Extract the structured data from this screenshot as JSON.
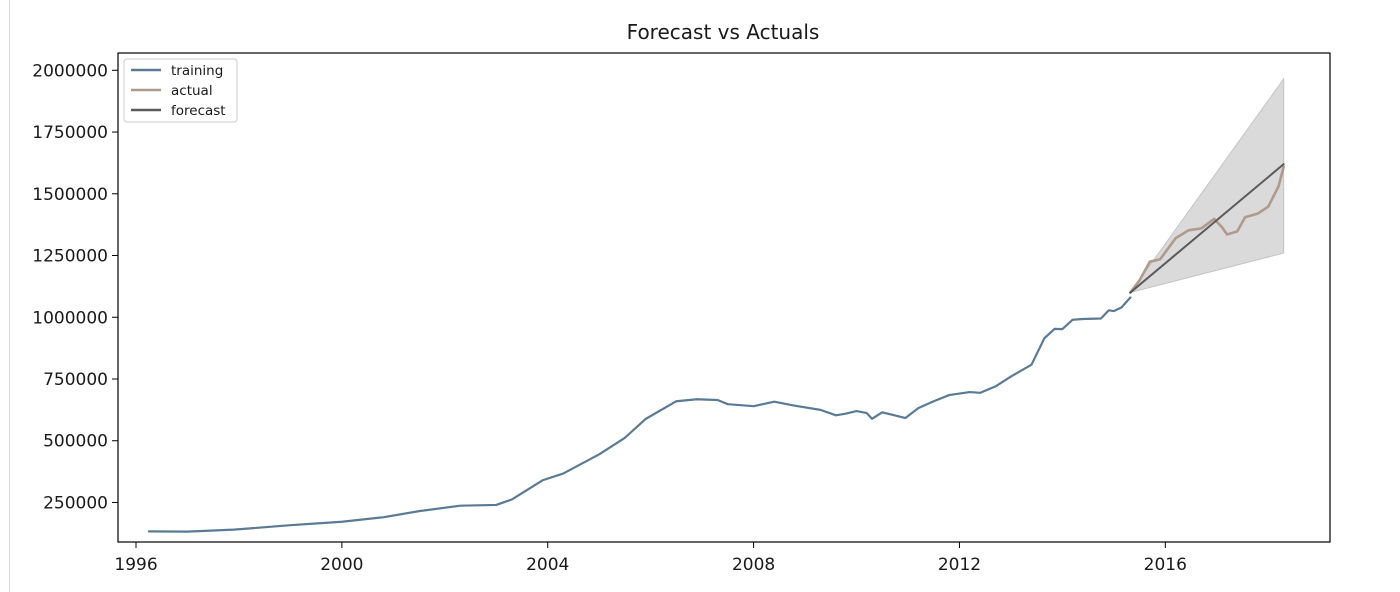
{
  "chart_data": {
    "type": "line",
    "title": "Forecast vs Actuals",
    "xlabel": "",
    "ylabel": "",
    "xlim": [
      1995.65,
      2019.2
    ],
    "ylim": [
      90000,
      2070000
    ],
    "x_ticks": [
      1996,
      2000,
      2004,
      2008,
      2012,
      2016
    ],
    "y_ticks": [
      250000,
      500000,
      750000,
      1000000,
      1250000,
      1500000,
      1750000,
      2000000
    ],
    "x_tick_labels": [
      "1996",
      "2000",
      "2004",
      "2008",
      "2012",
      "2016"
    ],
    "y_tick_labels": [
      "250000",
      "500000",
      "750000",
      "1000000",
      "1250000",
      "1500000",
      "1750000",
      "2000000"
    ],
    "grid": false,
    "legend_position": "upper-left",
    "legend": [
      "training",
      "actual",
      "forecast"
    ],
    "colors": {
      "training": "#5b7a93",
      "actual": "#b09a8c",
      "forecast": "#5a5a5a",
      "confidence": "#d3d3d3"
    },
    "series": [
      {
        "name": "training",
        "x": [
          1996.25,
          1997.0,
          1997.9,
          1999.0,
          2000.0,
          2000.8,
          2001.5,
          2002.3,
          2003.0,
          2003.3,
          2003.9,
          2004.3,
          2005.0,
          2005.5,
          2005.9,
          2006.5,
          2006.9,
          2007.3,
          2007.5,
          2008.0,
          2008.4,
          2008.8,
          2009.3,
          2009.6,
          2009.8,
          2010.0,
          2010.2,
          2010.3,
          2010.5,
          2010.8,
          2010.95,
          2011.2,
          2011.5,
          2011.8,
          2012.2,
          2012.4,
          2012.7,
          2013.0,
          2013.4,
          2013.65,
          2013.85,
          2014.0,
          2014.2,
          2014.4,
          2014.75,
          2014.9,
          2015.0,
          2015.15,
          2015.32
        ],
        "y": [
          133000,
          132000,
          140000,
          158000,
          172000,
          190000,
          215000,
          237000,
          240000,
          262000,
          340000,
          367000,
          445000,
          512000,
          588000,
          660000,
          668000,
          665000,
          648000,
          640000,
          658000,
          642000,
          625000,
          603000,
          610000,
          620000,
          612000,
          589000,
          615000,
          600000,
          592000,
          632000,
          660000,
          685000,
          697000,
          694000,
          720000,
          760000,
          808000,
          915000,
          953000,
          952000,
          990000,
          993000,
          995000,
          1028000,
          1025000,
          1040000,
          1080000
        ]
      },
      {
        "name": "actual",
        "x": [
          2015.32,
          2015.5,
          2015.7,
          2015.9,
          2016.2,
          2016.45,
          2016.7,
          2016.95,
          2017.1,
          2017.2,
          2017.4,
          2017.55,
          2017.8,
          2018.0,
          2018.2,
          2018.3
        ],
        "y": [
          1100000,
          1150000,
          1225000,
          1235000,
          1320000,
          1352000,
          1360000,
          1398000,
          1365000,
          1335000,
          1348000,
          1405000,
          1420000,
          1448000,
          1530000,
          1610000
        ]
      },
      {
        "name": "forecast",
        "x": [
          2015.32,
          2018.3
        ],
        "y": [
          1100000,
          1620000
        ]
      }
    ],
    "confidence_interval": {
      "x": [
        2015.32,
        2018.3
      ],
      "lower": [
        1100000,
        1260000
      ],
      "upper": [
        1100000,
        1965000
      ]
    }
  }
}
